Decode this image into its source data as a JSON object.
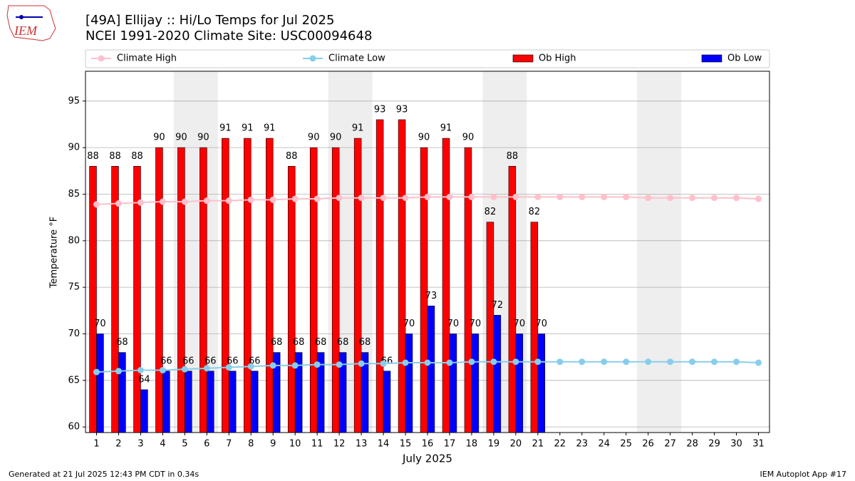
{
  "logo_text": "IEM",
  "footer_left": "Generated at 21 Jul 2025 12:43 PM CDT in 0.34s",
  "footer_right": "IEM Autoplot App #17",
  "chart_data": {
    "type": "bar",
    "title": "[49A] Ellijay :: Hi/Lo Temps for Jul 2025",
    "subtitle": "NCEI 1991-2020 Climate Site: USC00094648",
    "x_label": "July 2025",
    "y_label": "Temperature °F",
    "categories": [
      "1",
      "2",
      "3",
      "4",
      "5",
      "6",
      "7",
      "8",
      "9",
      "10",
      "11",
      "12",
      "13",
      "14",
      "15",
      "16",
      "17",
      "18",
      "19",
      "20",
      "21",
      "22",
      "23",
      "24",
      "25",
      "26",
      "27",
      "28",
      "29",
      "30",
      "31"
    ],
    "shaded_days": [
      [
        5,
        6
      ],
      [
        12,
        13
      ],
      [
        19,
        20
      ],
      [
        26,
        27
      ]
    ],
    "shade_color": "#eeeeee",
    "ylim": [
      59.4,
      98.2
    ],
    "yticks": [
      60,
      65,
      70,
      75,
      80,
      85,
      90,
      95
    ],
    "grid": true,
    "series": [
      {
        "name": "Climate High",
        "type": "line",
        "color": "#ffc0cb",
        "values": [
          83.9,
          84.0,
          84.1,
          84.2,
          84.2,
          84.3,
          84.3,
          84.4,
          84.4,
          84.5,
          84.5,
          84.6,
          84.6,
          84.6,
          84.6,
          84.7,
          84.7,
          84.7,
          84.7,
          84.7,
          84.7,
          84.7,
          84.7,
          84.7,
          84.7,
          84.6,
          84.6,
          84.6,
          84.6,
          84.6,
          84.5
        ]
      },
      {
        "name": "Climate Low",
        "type": "line",
        "color": "#87ceeb",
        "values": [
          65.9,
          66.0,
          66.1,
          66.1,
          66.2,
          66.3,
          66.4,
          66.5,
          66.6,
          66.6,
          66.7,
          66.7,
          66.8,
          66.8,
          66.9,
          66.9,
          66.9,
          67.0,
          67.0,
          67.0,
          67.0,
          67.0,
          67.0,
          67.0,
          67.0,
          67.0,
          67.0,
          67.0,
          67.0,
          67.0,
          66.9
        ]
      },
      {
        "name": "Ob High",
        "type": "bar",
        "color": "#ff0000",
        "values": [
          88,
          88,
          88,
          90,
          90,
          90,
          91,
          91,
          91,
          88,
          90,
          90,
          91,
          93,
          93,
          90,
          91,
          90,
          82,
          88,
          82,
          null,
          null,
          null,
          null,
          null,
          null,
          null,
          null,
          null,
          null
        ]
      },
      {
        "name": "Ob Low",
        "type": "bar",
        "color": "#0000ff",
        "values": [
          70,
          68,
          64,
          66,
          66,
          66,
          66,
          66,
          68,
          68,
          68,
          68,
          68,
          66,
          70,
          73,
          70,
          70,
          72,
          70,
          70,
          null,
          null,
          null,
          null,
          null,
          null,
          null,
          null,
          null,
          null
        ]
      }
    ]
  }
}
